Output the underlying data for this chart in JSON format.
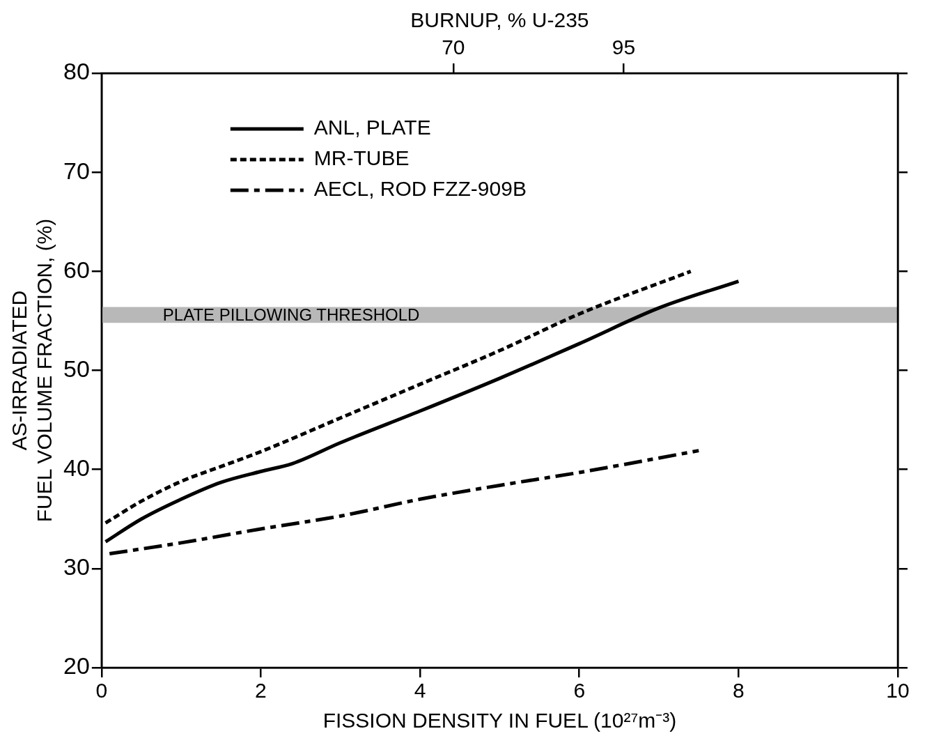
{
  "chart_data": {
    "type": "line",
    "xlabel": "FISSION DENSITY IN FUEL (10²⁷m⁻³)",
    "ylabel": "AS-IRRADIATED\nFUEL VOLUME FRACTION, (%)",
    "x2label": "BURNUP, % U-235",
    "xlim": [
      0,
      10
    ],
    "xticks": [
      0,
      2,
      4,
      6,
      8,
      10
    ],
    "x2lim": [
      18.4,
      135.2
    ],
    "x2ticks": [
      70,
      95
    ],
    "ylim": [
      20,
      80
    ],
    "yticks": [
      20,
      30,
      40,
      50,
      60,
      70,
      80
    ],
    "grid": false,
    "legend": "top left",
    "marker": "none",
    "series": [
      {
        "name": "ANL, PLATE",
        "color": "#000000",
        "line_style": "solid",
        "x": [
          0.05,
          0.5,
          1,
          1.5,
          2,
          2.4,
          3,
          4,
          5,
          6,
          7,
          8
        ],
        "values": [
          32.7,
          35,
          37,
          38.7,
          39.8,
          40.6,
          42.7,
          45.9,
          49.2,
          52.7,
          56.3,
          59
        ]
      },
      {
        "name": "MR-TUBE",
        "color": "#000000",
        "line_style": "dotted",
        "x": [
          0.05,
          0.5,
          1,
          1.5,
          2,
          3,
          4,
          5,
          6,
          7.4
        ],
        "values": [
          34.6,
          36.8,
          38.8,
          40.3,
          41.8,
          45.2,
          48.6,
          52,
          55.7,
          60
        ]
      },
      {
        "name": "AECL, ROD FZZ-909B",
        "color": "#000000",
        "line_style": "dashed",
        "x": [
          0.1,
          1,
          2,
          3,
          4,
          5,
          6,
          7.5
        ],
        "values": [
          31.5,
          32.6,
          34,
          35.3,
          37,
          38.4,
          39.7,
          41.9
        ]
      }
    ],
    "bands": [
      {
        "axis": "y",
        "from": 54.8,
        "to": 56.4,
        "label": "PLATE PILLOWING THRESHOLD",
        "color": "#b8b8b8"
      }
    ]
  }
}
